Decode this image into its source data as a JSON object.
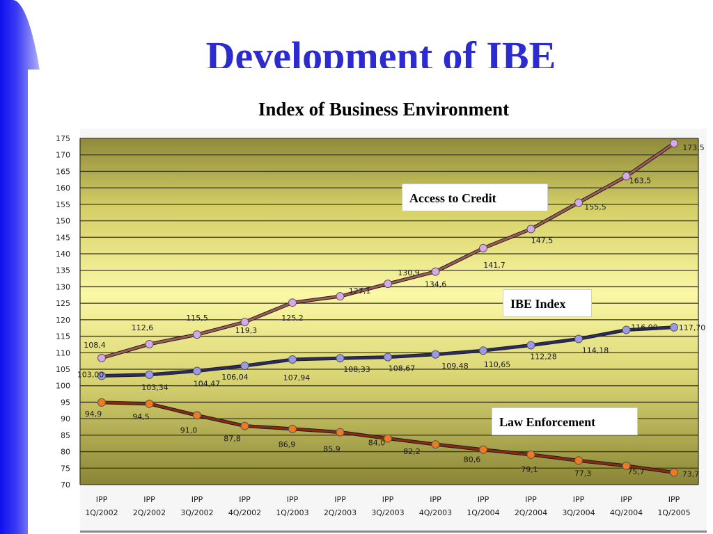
{
  "slide": {
    "title": "Development of IBE"
  },
  "chart_data": {
    "type": "line",
    "title": "Index of Business Environment",
    "xlabel": "",
    "ylabel": "",
    "ylim": [
      70,
      175
    ],
    "yticks": [
      70,
      75,
      80,
      85,
      90,
      95,
      100,
      105,
      110,
      115,
      120,
      125,
      130,
      135,
      140,
      145,
      150,
      155,
      160,
      165,
      170,
      175
    ],
    "grid": true,
    "categories": [
      "IPP 1Q/2002",
      "IPP 2Q/2002",
      "IPP 3Q/2002",
      "IPP 4Q/2002",
      "IPP 1Q/2003",
      "IPP 2Q/2003",
      "IPP 3Q/2003",
      "IPP 4Q/2003",
      "IPP 1Q/2004",
      "IPP 2Q/2004",
      "IPP 3Q/2004",
      "IPP 4Q/2004",
      "IPP 1Q/2005"
    ],
    "category_lines": [
      [
        "IPP",
        "1Q/2002"
      ],
      [
        "IPP",
        "2Q/2002"
      ],
      [
        "IPP",
        "3Q/2002"
      ],
      [
        "IPP",
        "4Q/2002"
      ],
      [
        "IPP",
        "1Q/2003"
      ],
      [
        "IPP",
        "2Q/2003"
      ],
      [
        "IPP",
        "3Q/2003"
      ],
      [
        "IPP",
        "4Q/2003"
      ],
      [
        "IPP",
        "1Q/2004"
      ],
      [
        "IPP",
        "2Q/2004"
      ],
      [
        "IPP",
        "3Q/2004"
      ],
      [
        "IPP",
        "4Q/2004"
      ],
      [
        "IPP",
        "1Q/2005"
      ]
    ],
    "series": [
      {
        "name": "Access to Credit",
        "color": "#a05a5a",
        "marker_color": "#d8a8e8",
        "values": [
          108.4,
          112.6,
          115.5,
          119.3,
          125.2,
          127.1,
          130.9,
          134.6,
          141.7,
          147.5,
          155.5,
          163.5,
          173.5
        ],
        "labels": [
          "108,4",
          "112,6",
          "115,5",
          "119,3",
          "125,2",
          "127,1",
          "130,9",
          "134,6",
          "141,7",
          "147,5",
          "155,5",
          "163,5",
          "173,5"
        ]
      },
      {
        "name": "IBE Index",
        "color": "#2a2a6a",
        "marker_color": "#9a9ae8",
        "values": [
          103.0,
          103.34,
          104.47,
          106.04,
          107.94,
          108.33,
          108.67,
          109.48,
          110.65,
          112.28,
          114.18,
          116.9,
          117.7
        ],
        "labels": [
          "103,00",
          "103,34",
          "104,47",
          "106,04",
          "107,94",
          "108,33",
          "108,67",
          "109,48",
          "110,65",
          "112,28",
          "114,18",
          "116,90",
          "117,70"
        ]
      },
      {
        "name": "Law Enforcement",
        "color": "#8a2a10",
        "marker_color": "#f07a20",
        "values": [
          94.9,
          94.5,
          91.0,
          87.8,
          86.9,
          85.9,
          84.0,
          82.2,
          80.6,
          79.1,
          77.3,
          75.7,
          73.7
        ],
        "labels": [
          "94,9",
          "94,5",
          "91,0",
          "87,8",
          "86,9",
          "85,9",
          "84,0",
          "82,2",
          "80,6",
          "79,1",
          "77,3",
          "75,7",
          "73,7"
        ]
      }
    ]
  }
}
